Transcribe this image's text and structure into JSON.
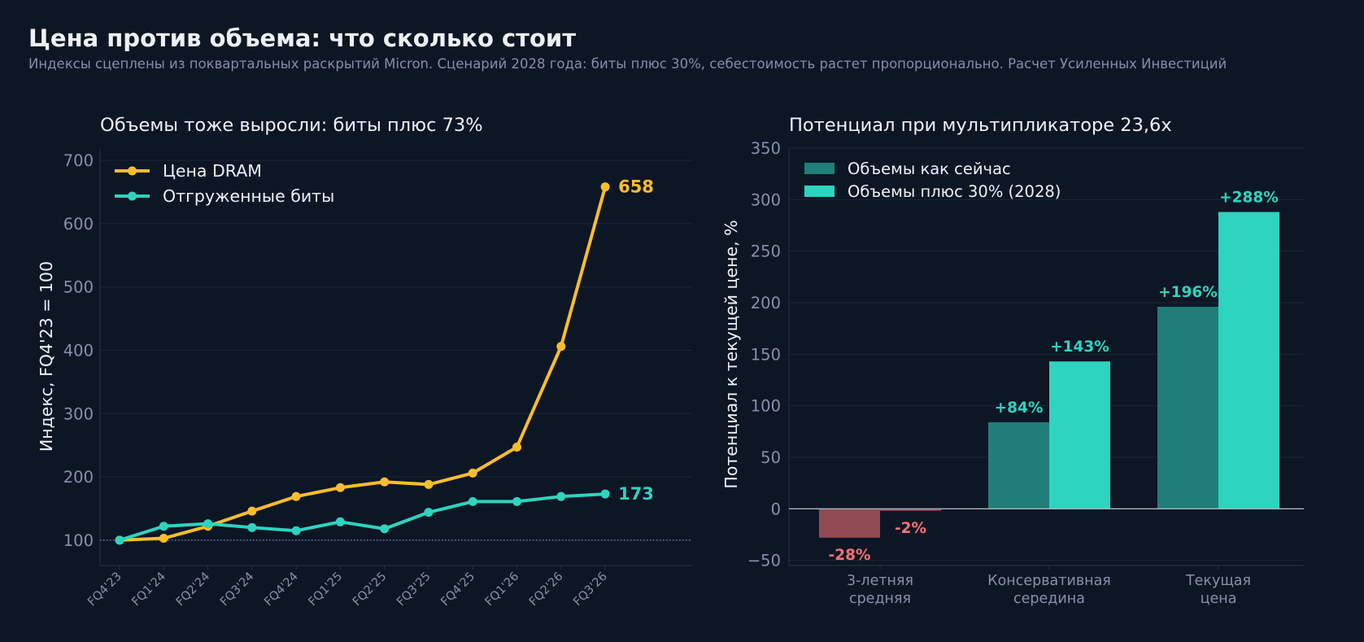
{
  "header": {
    "title": "Цена против объема: что сколько стоит",
    "subtitle": "Индексы сцеплены из поквартальных раскрытий Micron. Сценарий 2028 года: биты плюс 30%, себестоимость растет пропорционально. Расчет Усиленных Инвестиций"
  },
  "colors": {
    "background": "#0d1625",
    "dram": "#fbbd2a",
    "bits": "#2dd4bf",
    "bar_current": "#1f7f78",
    "bar_plus30": "#2dd4bf",
    "negative": "#f87171",
    "negative_bar": "#914a52"
  },
  "chart_data": [
    {
      "type": "line",
      "title": "Объемы тоже выросли: биты плюс 73%",
      "xlabel": "",
      "ylabel": "Индекс, FQ4'23 = 100",
      "x": [
        "FQ4'23",
        "FQ1'24",
        "FQ2'24",
        "FQ3'24",
        "FQ4'24",
        "FQ1'25",
        "FQ2'25",
        "FQ3'25",
        "FQ4'25",
        "FQ1'26",
        "FQ2'26",
        "FQ3'26"
      ],
      "series": [
        {
          "name": "Цена DRAM",
          "values": [
            100,
            103,
            122,
            146,
            169,
            183,
            192,
            188,
            206,
            247,
            406,
            658
          ],
          "end_label": "658"
        },
        {
          "name": "Отгруженные биты",
          "values": [
            100,
            122,
            126,
            120,
            115,
            129,
            118,
            144,
            161,
            161,
            169,
            173
          ],
          "end_label": "173"
        }
      ],
      "ylim": [
        60,
        718
      ],
      "yticks": [
        100,
        200,
        300,
        400,
        500,
        600,
        700
      ],
      "reference_line": 100,
      "grid": true,
      "legend": "top-left"
    },
    {
      "type": "bar",
      "title": "Потенциал при мультипликаторе 23,6x",
      "xlabel": "",
      "ylabel": "Потенциал к текущей цене, %",
      "categories": [
        [
          "3-летняя",
          "средняя"
        ],
        [
          "Консервативная",
          "середина"
        ],
        [
          "Текущая",
          "цена"
        ]
      ],
      "series": [
        {
          "name": "Объемы как сейчас",
          "values": [
            -28,
            84,
            196
          ],
          "labels": [
            "-28%",
            "+84%",
            "+196%"
          ]
        },
        {
          "name": "Объемы плюс 30% (2028)",
          "values": [
            -2,
            143,
            288
          ],
          "labels": [
            "-2%",
            "+143%",
            "+288%"
          ]
        }
      ],
      "ylim": [
        -55,
        350
      ],
      "yticks": [
        -50,
        0,
        50,
        100,
        150,
        200,
        250,
        300,
        350
      ],
      "grid": true,
      "legend": "top-left"
    }
  ]
}
